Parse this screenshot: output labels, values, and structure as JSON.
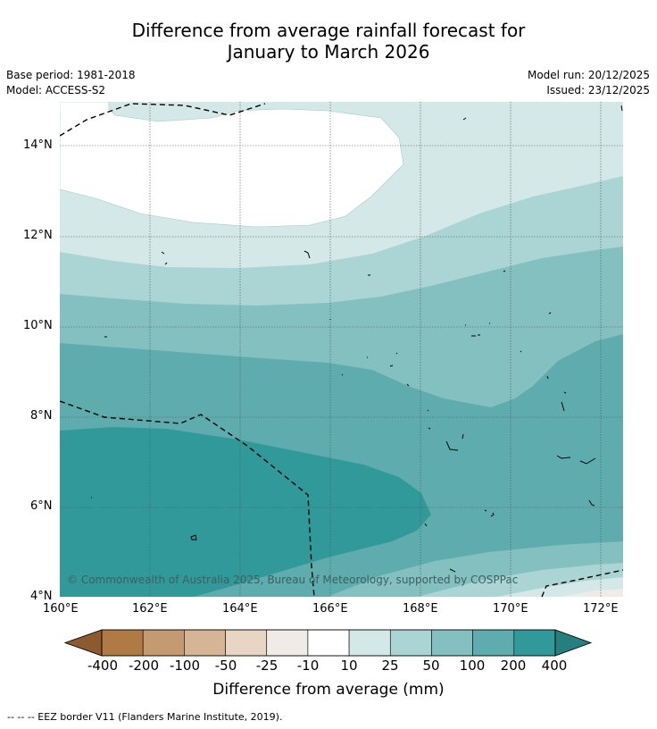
{
  "title": {
    "line1": "Difference from average rainfall forecast for",
    "line2": "January to March 2026"
  },
  "meta": {
    "base_period": "Base period: 1981-2018",
    "model": "Model: ACCESS-S2",
    "model_run": "Model run: 20/12/2025",
    "issued": "Issued: 23/12/2025"
  },
  "map": {
    "lat_labels": [
      "14°N",
      "12°N",
      "10°N",
      "8°N",
      "6°N",
      "4°N"
    ],
    "lon_labels": [
      "160°E",
      "162°E",
      "164°E",
      "166°E",
      "168°E",
      "170°E",
      "172°E"
    ],
    "copyright": "© Commonwealth of Australia 2025, Bureau of Meteorology, supported by COSPPac"
  },
  "legend": {
    "labels": [
      "-400",
      "-200",
      "-100",
      "-50",
      "-25",
      "-10",
      "10",
      "25",
      "50",
      "100",
      "200",
      "400"
    ],
    "colors": [
      "#8c5a2e",
      "#b07a45",
      "#c49a70",
      "#d6b596",
      "#e8d5c3",
      "#efebe7",
      "#ffffff",
      "#d4e8e7",
      "#aad5d4",
      "#84c0c0",
      "#5eacad",
      "#32999a",
      "#267e7f"
    ],
    "title": "Difference from average (mm)"
  },
  "footer": "--  --  -- EEZ border V11 (Flanders Marine Institute, 2019)."
}
